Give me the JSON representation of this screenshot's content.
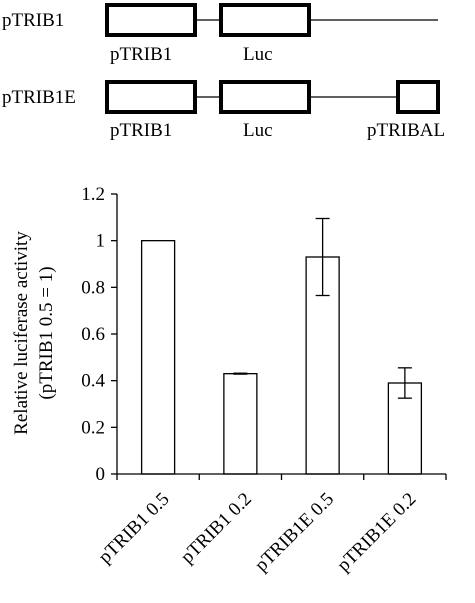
{
  "constructs": [
    {
      "name": "pTRIB1",
      "parts": [
        {
          "kind": "box",
          "label": "pTRIB1"
        },
        {
          "kind": "box",
          "label": "Luc"
        }
      ]
    },
    {
      "name": "pTRIB1E",
      "parts": [
        {
          "kind": "box",
          "label": "pTRIB1"
        },
        {
          "kind": "box",
          "label": "Luc"
        },
        {
          "kind": "box",
          "label": "pTRIBAL"
        }
      ]
    }
  ],
  "chart_data": {
    "type": "bar",
    "categories": [
      "pTRIB1 0.5",
      "pTRIB1 0.2",
      "pTRIB1E 0.5",
      "pTRIB1E 0.2"
    ],
    "values": [
      1.0,
      0.43,
      0.93,
      0.39
    ],
    "errors": [
      0,
      0.002,
      0.165,
      0.065
    ],
    "ylabel": [
      "Relative  luciferase activity",
      "(pTRIB1 0.5 = 1)"
    ],
    "ylim": [
      0,
      1.2
    ],
    "yticks": [
      0,
      0.2,
      0.4,
      0.6,
      0.8,
      1,
      1.2
    ],
    "ytick_labels": [
      "0",
      "0.2",
      "0.4",
      "0.6",
      "0.8",
      "1",
      "1.2"
    ],
    "grid": false,
    "bar_fill": "#ffffff",
    "bar_edge": "#000000"
  }
}
